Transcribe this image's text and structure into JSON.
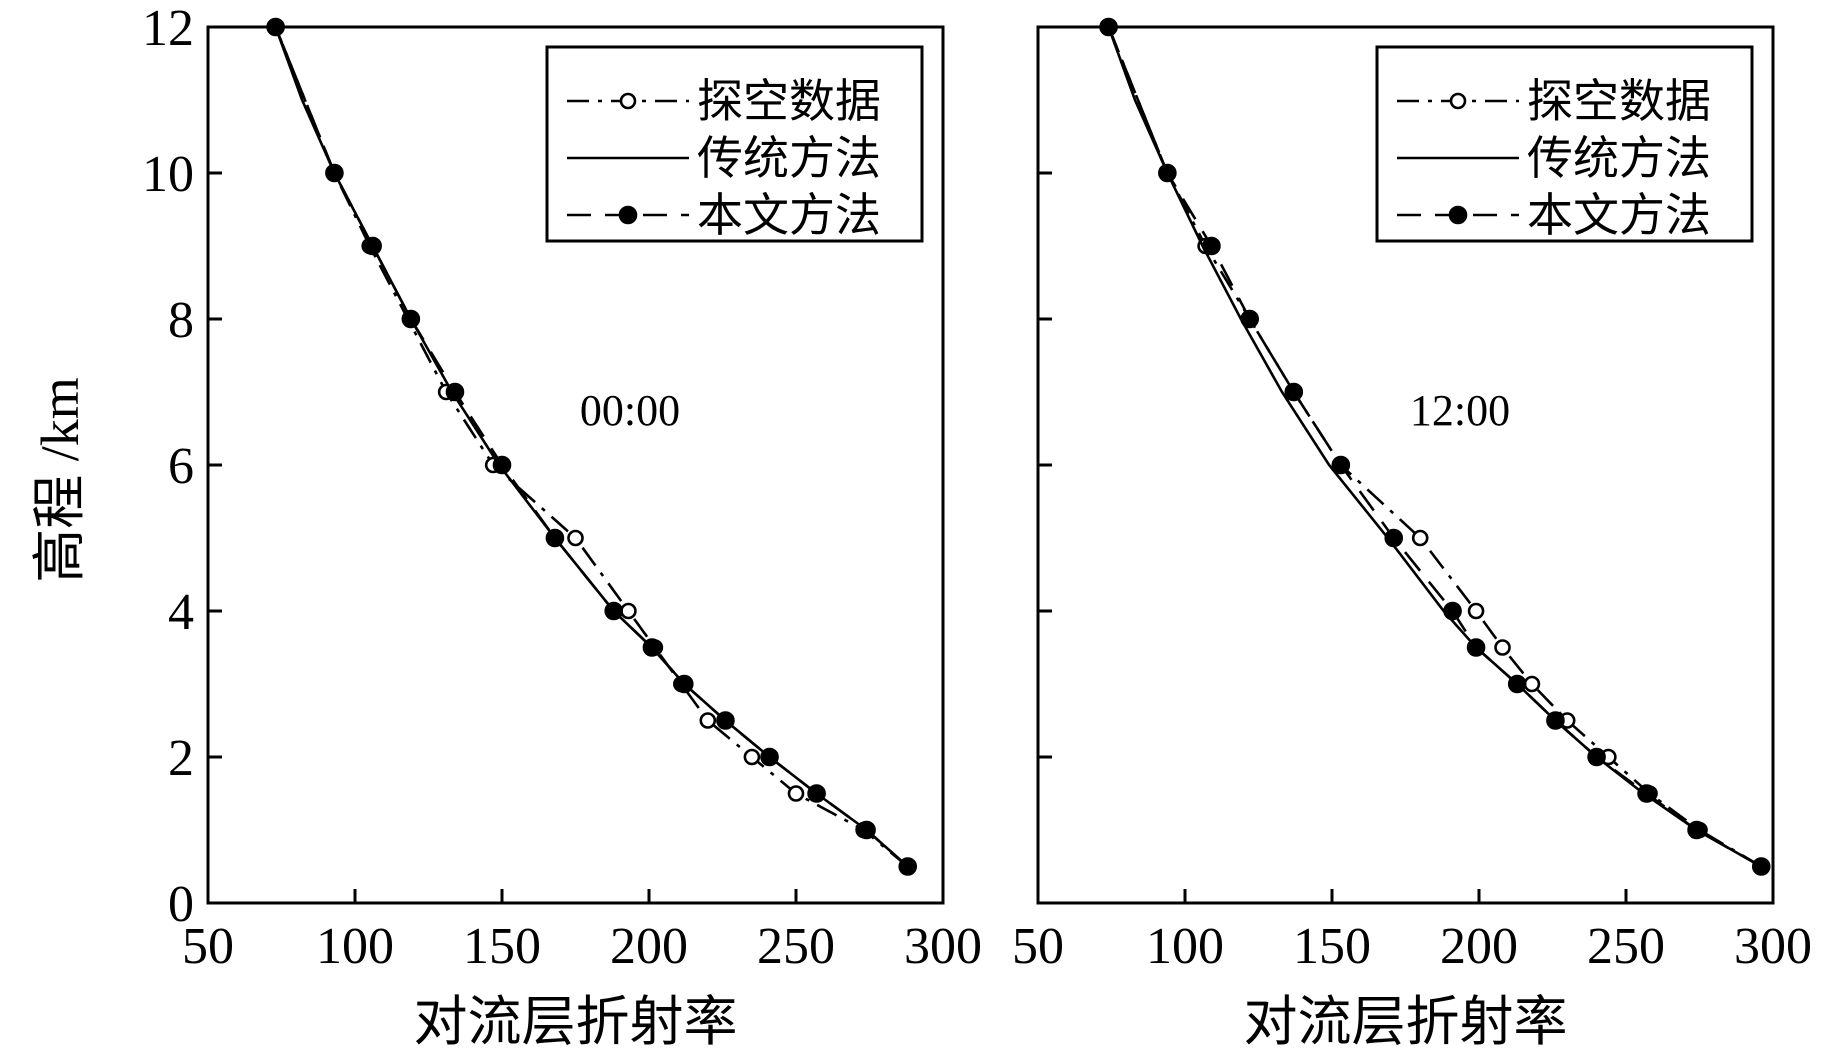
{
  "chart_data": [
    {
      "type": "line",
      "annotation": "00:00",
      "xlabel": "对流层折射率",
      "ylabel": "高程 /km",
      "xlim": [
        50,
        300
      ],
      "ylim": [
        0,
        12
      ],
      "xticks": [
        "50",
        "100",
        "150",
        "200",
        "250",
        "300"
      ],
      "yticks": [
        "0",
        "2",
        "4",
        "6",
        "8",
        "10",
        "12"
      ],
      "legend_position": "top-right",
      "grid": false,
      "series": [
        {
          "name": "探空数据",
          "style": "dash-dot-open-circle",
          "x": [
            288,
            273,
            250,
            235,
            220,
            211,
            202,
            193,
            175,
            147,
            131,
            105,
            93,
            73
          ],
          "y": [
            0.5,
            1,
            1.5,
            2,
            2.5,
            3,
            3.5,
            4,
            5,
            6,
            7,
            9,
            10,
            12
          ]
        },
        {
          "name": "传统方法",
          "style": "solid",
          "x": [
            288,
            274,
            257,
            241,
            226,
            212,
            201,
            188,
            168,
            149,
            133,
            119,
            106,
            93,
            82,
            73
          ],
          "y": [
            0.5,
            1,
            1.5,
            2,
            2.5,
            3,
            3.5,
            4,
            5,
            6,
            7,
            8,
            9,
            10,
            11,
            12
          ]
        },
        {
          "name": "本文方法",
          "style": "dash-filled-circle",
          "x": [
            288,
            274,
            257,
            241,
            226,
            212,
            201,
            188,
            168,
            150,
            134,
            119,
            106,
            93,
            73
          ],
          "y": [
            0.5,
            1,
            1.5,
            2,
            2.5,
            3,
            3.5,
            4,
            5,
            6,
            7,
            8,
            9,
            10,
            12
          ]
        }
      ]
    },
    {
      "type": "line",
      "annotation": "12:00",
      "xlabel": "对流层折射率",
      "xlim": [
        50,
        300
      ],
      "ylim": [
        0,
        12
      ],
      "xticks": [
        "50",
        "100",
        "150",
        "200",
        "250",
        "300"
      ],
      "legend_position": "top-right",
      "grid": false,
      "series": [
        {
          "name": "探空数据",
          "style": "dash-dot-open-circle",
          "x": [
            296,
            275,
            258,
            244,
            230,
            218,
            208,
            199,
            180,
            153,
            137,
            122,
            107,
            94,
            74
          ],
          "y": [
            0.5,
            1,
            1.5,
            2,
            2.5,
            3,
            3.5,
            4,
            5,
            6,
            7,
            8,
            9,
            10,
            12
          ]
        },
        {
          "name": "传统方法",
          "style": "solid",
          "x": [
            296,
            274,
            256,
            240,
            226,
            213,
            199,
            188,
            169,
            149,
            133,
            119,
            106,
            94,
            83,
            74
          ],
          "y": [
            0.5,
            1,
            1.5,
            2,
            2.5,
            3,
            3.5,
            4,
            5,
            6,
            7,
            8,
            9,
            10,
            11,
            12
          ]
        },
        {
          "name": "本文方法",
          "style": "dash-filled-circle",
          "x": [
            296,
            274,
            257,
            240,
            226,
            213,
            199,
            191,
            171,
            153,
            137,
            122,
            109,
            94,
            74
          ],
          "y": [
            0.5,
            1,
            1.5,
            2,
            2.5,
            3,
            3.5,
            4,
            5,
            6,
            7,
            8,
            9,
            10,
            12
          ]
        }
      ]
    }
  ]
}
